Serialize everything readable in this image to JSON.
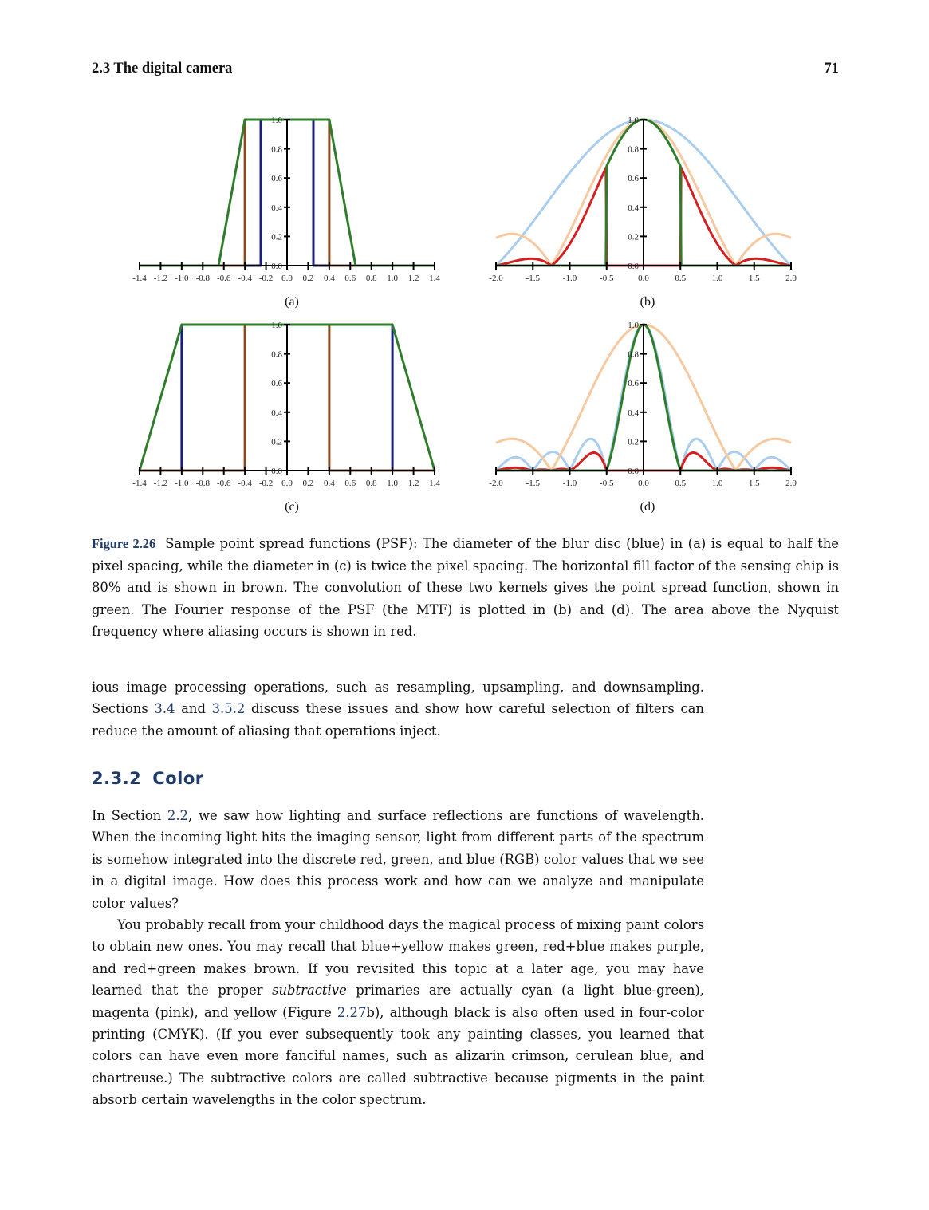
{
  "header": {
    "section": "2.3  The digital camera",
    "page_number": "71"
  },
  "chart_data": [
    {
      "id": "a",
      "type": "line",
      "sublabel": "(a)",
      "xlim": [
        -1.4,
        1.4
      ],
      "ylim": [
        0,
        1.0
      ],
      "xticks": [
        "-1.4",
        "-1.2",
        "-1.0",
        "-0.8",
        "-0.6",
        "-0.4",
        "-0.2",
        "0.0",
        "0.2",
        "0.4",
        "0.6",
        "0.8",
        "1.0",
        "1.2",
        "1.4"
      ],
      "yticks": [
        "0.0",
        "0.2",
        "0.4",
        "0.6",
        "0.8",
        "1.0"
      ],
      "series": [
        {
          "color": "#1a1f7a",
          "x": [
            -1.4,
            -0.25,
            -0.25,
            0.25,
            0.25,
            1.4
          ],
          "y": [
            0,
            0,
            1,
            1,
            0,
            0
          ]
        },
        {
          "color": "#8a4a1e",
          "x": [
            -1.4,
            -0.4,
            -0.4,
            0.4,
            0.4,
            1.4
          ],
          "y": [
            0,
            0,
            1,
            1,
            0,
            0
          ]
        },
        {
          "color": "#2e7d2a",
          "x": [
            -1.4,
            -0.65,
            -0.4,
            0.4,
            0.65,
            1.4
          ],
          "y": [
            0,
            0,
            1,
            1,
            0,
            0
          ]
        }
      ]
    },
    {
      "id": "b",
      "type": "line",
      "sublabel": "(b)",
      "xlim": [
        -2.0,
        2.0
      ],
      "ylim": [
        0,
        1.0
      ],
      "xticks": [
        "-2.0",
        "-1.5",
        "-1.0",
        "-0.5",
        "0.0",
        "0.5",
        "1.0",
        "1.5",
        "2.0"
      ],
      "yticks": [
        "0.0",
        "0.2",
        "0.4",
        "0.6",
        "0.8",
        "1.0"
      ],
      "series": [
        {
          "color": "#a9cdee",
          "fn": "absSinc",
          "k": 0.5
        },
        {
          "color": "#f6c9a0",
          "fn": "absSinc",
          "k": 0.8
        },
        {
          "color": "#d42020",
          "fn": "absSincProd",
          "k1": 0.5,
          "k2": 0.8,
          "domain": "outer"
        },
        {
          "color": "#2e7d2a",
          "fn": "absSincProd",
          "k1": 0.5,
          "k2": 0.8,
          "domain": "inner"
        }
      ]
    },
    {
      "id": "c",
      "type": "line",
      "sublabel": "(c)",
      "xlim": [
        -1.4,
        1.4
      ],
      "ylim": [
        0,
        1.0
      ],
      "xticks": [
        "-1.4",
        "-1.2",
        "-1.0",
        "-0.8",
        "-0.6",
        "-0.4",
        "-0.2",
        "0.0",
        "0.2",
        "0.4",
        "0.6",
        "0.8",
        "1.0",
        "1.2",
        "1.4"
      ],
      "yticks": [
        "0.0",
        "0.2",
        "0.4",
        "0.6",
        "0.8",
        "1.0"
      ],
      "series": [
        {
          "color": "#1a1f7a",
          "x": [
            -1.4,
            -1.0,
            -1.0,
            1.0,
            1.0,
            1.4
          ],
          "y": [
            0,
            0,
            1,
            1,
            0,
            0
          ]
        },
        {
          "color": "#8a4a1e",
          "x": [
            -1.4,
            -0.4,
            -0.4,
            0.4,
            0.4,
            1.4
          ],
          "y": [
            0,
            0,
            1,
            1,
            0,
            0
          ]
        },
        {
          "color": "#2e7d2a",
          "x": [
            -1.4,
            -1.0,
            1.0,
            1.4
          ],
          "y": [
            0,
            1,
            1,
            0
          ]
        }
      ]
    },
    {
      "id": "d",
      "type": "line",
      "sublabel": "(d)",
      "xlim": [
        -2.0,
        2.0
      ],
      "ylim": [
        0,
        1.0
      ],
      "xticks": [
        "-2.0",
        "-1.5",
        "-1.0",
        "-0.5",
        "0.0",
        "0.5",
        "1.0",
        "1.5",
        "2.0"
      ],
      "yticks": [
        "0.0",
        "0.2",
        "0.4",
        "0.6",
        "0.8",
        "1.0"
      ],
      "series": [
        {
          "color": "#a9cdee",
          "fn": "absSinc",
          "k": 2.0
        },
        {
          "color": "#f6c9a0",
          "fn": "absSinc",
          "k": 0.8
        },
        {
          "color": "#d42020",
          "fn": "absSincProd",
          "k1": 2.0,
          "k2": 0.8,
          "domain": "outer"
        },
        {
          "color": "#2e7d2a",
          "fn": "absSincProd",
          "k1": 2.0,
          "k2": 0.8,
          "domain": "inner"
        }
      ]
    }
  ],
  "caption": {
    "label": "Figure 2.26",
    "text": "Sample point spread functions (PSF): The diameter of the blur disc (blue) in (a) is equal to half the pixel spacing, while the diameter in (c) is twice the pixel spacing. The horizontal fill factor of the sensing chip is 80% and is shown in brown. The convolution of these two kernels gives the point spread function, shown in green. The Fourier response of the PSF (the MTF) is plotted in (b) and (d). The area above the Nyquist frequency where aliasing occurs is shown in red."
  },
  "para1": {
    "t1": "ious image processing operations, such as resampling, upsampling, and downsampling. Sections ",
    "ref1": "3.4",
    "t2": " and ",
    "ref2": "3.5.2",
    "t3": " discuss these issues and show how careful selection of filters can reduce the amount of aliasing that operations inject."
  },
  "section": {
    "number": "2.3.2",
    "title": "Color"
  },
  "para2": {
    "t1": "In Section ",
    "ref1": "2.2",
    "t2": ", we saw how lighting and surface reflections are functions of wavelength. When the incoming light hits the imaging sensor, light from different parts of the spectrum is somehow integrated into the discrete red, green, and blue (RGB) color values that we see in a digital image. How does this process work and how can we analyze and manipulate color values?"
  },
  "para3": {
    "t1": "You probably recall from your childhood days the magical process of mixing paint colors to obtain new ones. You may recall that blue+yellow makes green, red+blue makes purple, and red+green makes brown. If you revisited this topic at a later age, you may have learned that the proper ",
    "em": "subtractive",
    "t2": " primaries are actually cyan (a light blue-green), magenta (pink), and yellow (Figure ",
    "ref1": "2.27",
    "t3": "b), although black is also often used in four-color printing (CMYK). (If you ever subsequently took any painting classes, you learned that colors can have even more fanciful names, such as alizarin crimson, cerulean blue, and chartreuse.) The subtractive colors are called subtractive because pigments in the paint absorb certain wavelengths in the color spectrum."
  }
}
